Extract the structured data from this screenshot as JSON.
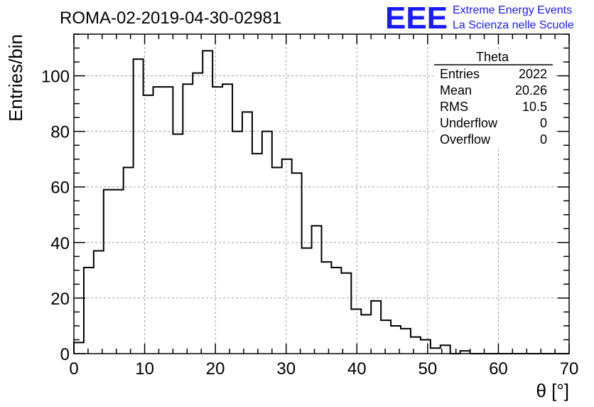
{
  "chart_data": {
    "type": "bar",
    "title": "ROMA-02-2019-04-30-02981",
    "xlabel": "θ [°]",
    "ylabel": "Entries/bin",
    "xlim": [
      0,
      70
    ],
    "ylim": [
      0,
      115
    ],
    "grid": true,
    "bin_width": 1.4,
    "x_ticks": [
      0,
      10,
      20,
      30,
      40,
      50,
      60,
      70
    ],
    "y_ticks": [
      0,
      20,
      40,
      60,
      80,
      100
    ],
    "x_tick_labels": [
      "0",
      "10",
      "20",
      "30",
      "40",
      "50",
      "60",
      "70"
    ],
    "y_tick_labels": [
      "0",
      "20",
      "40",
      "60",
      "80",
      "100"
    ],
    "values": [
      4,
      31,
      37,
      59,
      59,
      67,
      106,
      93,
      96,
      96,
      79,
      97,
      101,
      109,
      96,
      97,
      80,
      87,
      72,
      80,
      67,
      70,
      65,
      38,
      46,
      33,
      31,
      29,
      16,
      14,
      19,
      12,
      10,
      9,
      6,
      5,
      2,
      3,
      0,
      1,
      0,
      0,
      0,
      0,
      0,
      0,
      0,
      0,
      0,
      0
    ],
    "stats_box": {
      "title": "Theta",
      "rows": [
        {
          "label": "Entries",
          "value": "2022"
        },
        {
          "label": "Mean",
          "value": "20.26"
        },
        {
          "label": "RMS",
          "value": "10.5"
        },
        {
          "label": "Underflow",
          "value": "0"
        },
        {
          "label": "Overflow",
          "value": "0"
        }
      ]
    }
  },
  "logo": {
    "letters": "EEE",
    "line1": "Extreme Energy Events",
    "line2": "La Scienza nelle Scuole"
  }
}
